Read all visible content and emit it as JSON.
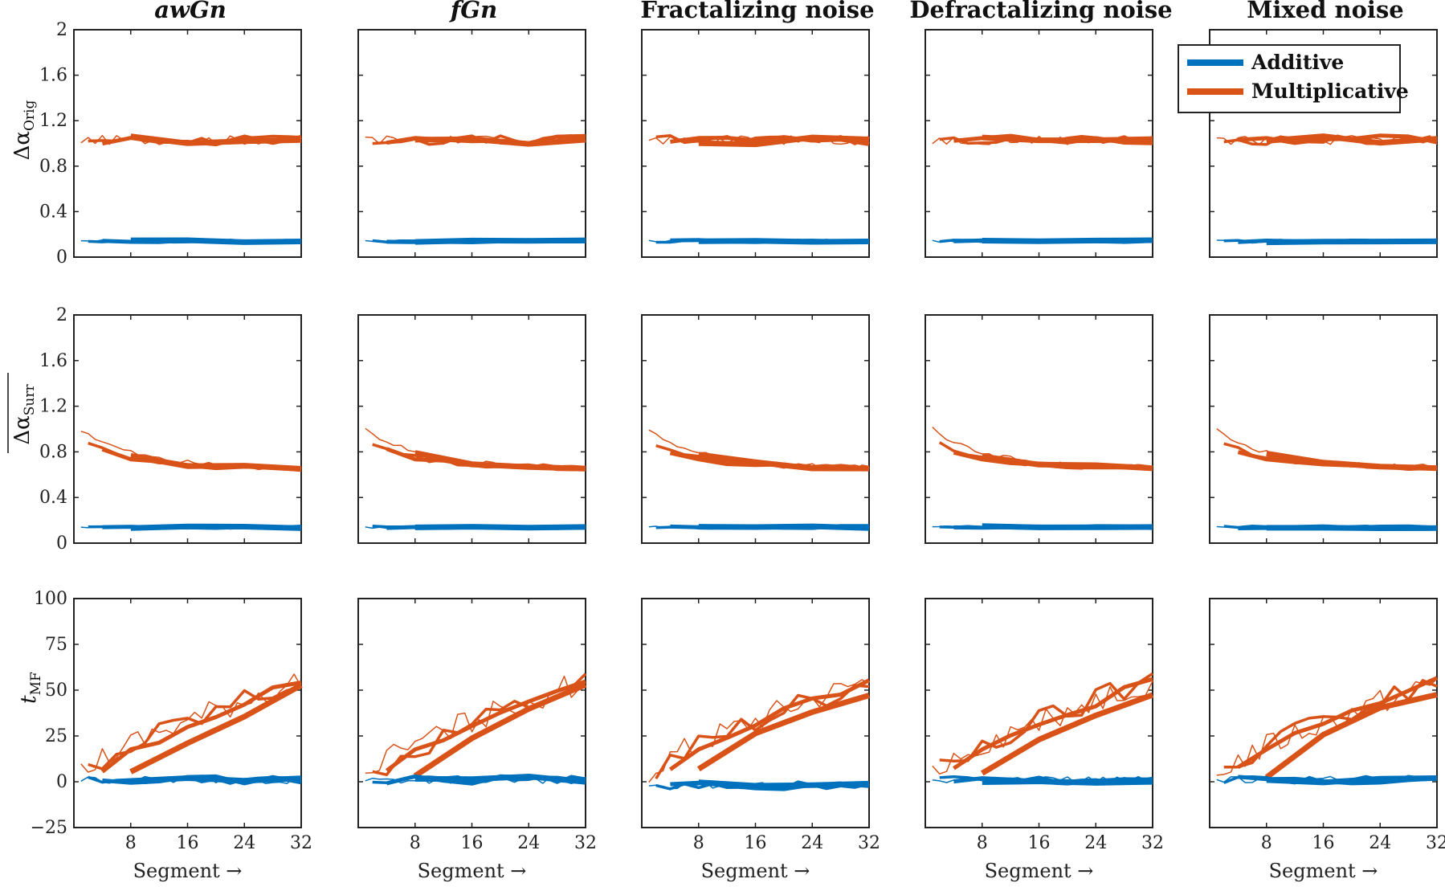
{
  "colors": {
    "additive": "#0072BD",
    "multiplicative": "#D95319"
  },
  "columns": [
    "awGn",
    "fGn",
    "Fractalizing noise",
    "Defractalizing noise",
    "Mixed noise"
  ],
  "rows": [
    {
      "ylabel_main": "Δα",
      "ylabel_sub": "Orig"
    },
    {
      "ylabel_main": "Δα",
      "ylabel_sub": "Surr"
    },
    {
      "ylabel_main": "t",
      "ylabel_sub": "MF"
    }
  ],
  "legend": {
    "additive": "Additive",
    "multiplicative": "Multiplicative"
  },
  "x_axis": {
    "label": "Segment  →",
    "ticks": [
      "8",
      "16",
      "24",
      "32"
    ]
  },
  "chart_data": {
    "type": "line",
    "layout": "grid 3 rows x 5 columns",
    "x_range": [
      0,
      32
    ],
    "rows": [
      {
        "name": "Δα_Orig",
        "ylim": [
          0,
          2
        ],
        "yticks": [
          "0",
          "0.4",
          "0.8",
          "1.2",
          "1.6",
          "2"
        ],
        "additive_level": 0.14,
        "multiplicative_level": 1.03
      },
      {
        "name": "Δα_Surr (mean)",
        "ylim": [
          0,
          2
        ],
        "yticks": [
          "0",
          "0.4",
          "0.8",
          "1.2",
          "1.6",
          "2"
        ],
        "additive_level": 0.14,
        "multiplicative_start": 1.0,
        "multiplicative_end": 0.66
      },
      {
        "name": "t_MF",
        "ylim": [
          -25,
          100
        ],
        "yticks": [
          "−25",
          "0",
          "25",
          "50",
          "75",
          "100"
        ],
        "additive_level": 1,
        "multiplicative_end_values": {
          "4": 50,
          "8": 56,
          "16": 55,
          "32": 55
        }
      }
    ],
    "series_segment_counts": [
      4,
      8,
      16,
      32
    ]
  }
}
